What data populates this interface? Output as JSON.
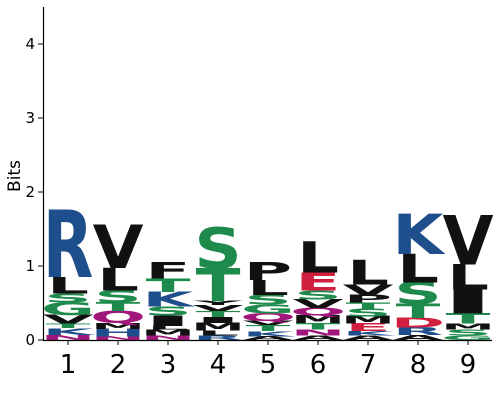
{
  "chart_data": {
    "type": "sequence-logo",
    "ylabel": "Bits",
    "ylim": [
      0,
      4.5
    ],
    "yticks": [
      0,
      1,
      2,
      3,
      4
    ],
    "positions": [
      "1",
      "2",
      "3",
      "4",
      "5",
      "6",
      "7",
      "8",
      "9"
    ],
    "stacks": [
      [
        {
          "l": "N",
          "h": 0.07
        },
        {
          "l": "K",
          "h": 0.09
        },
        {
          "l": "T",
          "h": 0.06
        },
        {
          "l": "V",
          "h": 0.12
        },
        {
          "l": "G",
          "h": 0.17
        },
        {
          "l": "S",
          "h": 0.12
        },
        {
          "l": "L",
          "h": 0.22
        },
        {
          "l": "R",
          "h": 0.9
        }
      ],
      [
        {
          "l": "N",
          "h": 0.05
        },
        {
          "l": "H",
          "h": 0.1
        },
        {
          "l": "M",
          "h": 0.08
        },
        {
          "l": "Q",
          "h": 0.16
        },
        {
          "l": "T",
          "h": 0.12
        },
        {
          "l": "S",
          "h": 0.16
        },
        {
          "l": "L",
          "h": 0.3
        },
        {
          "l": "V",
          "h": 0.58
        }
      ],
      [
        {
          "l": "N",
          "h": 0.06
        },
        {
          "l": "M",
          "h": 0.08
        },
        {
          "l": "L",
          "h": 0.05
        },
        {
          "l": "I",
          "h": 0.14
        },
        {
          "l": "S",
          "h": 0.12
        },
        {
          "l": "K",
          "h": 0.2
        },
        {
          "l": "T",
          "h": 0.18
        },
        {
          "l": "F",
          "h": 0.22
        }
      ],
      [
        {
          "l": "R",
          "h": 0.06
        },
        {
          "l": "L",
          "h": 0.07
        },
        {
          "l": "M",
          "h": 0.1
        },
        {
          "l": "I",
          "h": 0.08
        },
        {
          "l": "T",
          "h": 0.08
        },
        {
          "l": "V",
          "h": 0.08
        },
        {
          "l": "Y",
          "h": 0.06
        },
        {
          "l": "T",
          "h": 0.44
        },
        {
          "l": "S",
          "h": 0.55
        }
      ],
      [
        {
          "l": "A",
          "h": 0.05
        },
        {
          "l": "K",
          "h": 0.07
        },
        {
          "l": "T",
          "h": 0.08
        },
        {
          "l": "V",
          "h": 0.06
        },
        {
          "l": "Q",
          "h": 0.1
        },
        {
          "l": "G",
          "h": 0.12
        },
        {
          "l": "S",
          "h": 0.13
        },
        {
          "l": "L",
          "h": 0.2
        },
        {
          "l": "P",
          "h": 0.24
        }
      ],
      [
        {
          "l": "A",
          "h": 0.06
        },
        {
          "l": "N",
          "h": 0.08
        },
        {
          "l": "T",
          "h": 0.09
        },
        {
          "l": "M",
          "h": 0.1
        },
        {
          "l": "Q",
          "h": 0.1
        },
        {
          "l": "V",
          "h": 0.12
        },
        {
          "l": "S",
          "h": 0.12
        },
        {
          "l": "E",
          "h": 0.24
        },
        {
          "l": "L",
          "h": 0.42
        }
      ],
      [
        {
          "l": "A",
          "h": 0.06
        },
        {
          "l": "K",
          "h": 0.06
        },
        {
          "l": "E",
          "h": 0.1
        },
        {
          "l": "M",
          "h": 0.1
        },
        {
          "l": "S",
          "h": 0.1
        },
        {
          "l": "T",
          "h": 0.09
        },
        {
          "l": "P",
          "h": 0.1
        },
        {
          "l": "V",
          "h": 0.14
        },
        {
          "l": "L",
          "h": 0.33
        }
      ],
      [
        {
          "l": "A",
          "h": 0.07
        },
        {
          "l": "R",
          "h": 0.1
        },
        {
          "l": "D",
          "h": 0.13
        },
        {
          "l": "T",
          "h": 0.19
        },
        {
          "l": "S",
          "h": 0.29
        },
        {
          "l": "L",
          "h": 0.38
        },
        {
          "l": "K",
          "h": 0.54
        }
      ],
      [
        {
          "l": "G",
          "h": 0.06
        },
        {
          "l": "S",
          "h": 0.08
        },
        {
          "l": "M",
          "h": 0.08
        },
        {
          "l": "T",
          "h": 0.14
        },
        {
          "l": "I",
          "h": 0.32
        },
        {
          "l": "L",
          "h": 0.34
        },
        {
          "l": "V",
          "h": 0.66
        }
      ]
    ]
  },
  "colors": {
    "hydrophobic": "#111111",
    "polar": "#1e8a4c",
    "basic": "#1e4f8c",
    "acidic": "#d11f3f",
    "amide": "#a0167a"
  }
}
